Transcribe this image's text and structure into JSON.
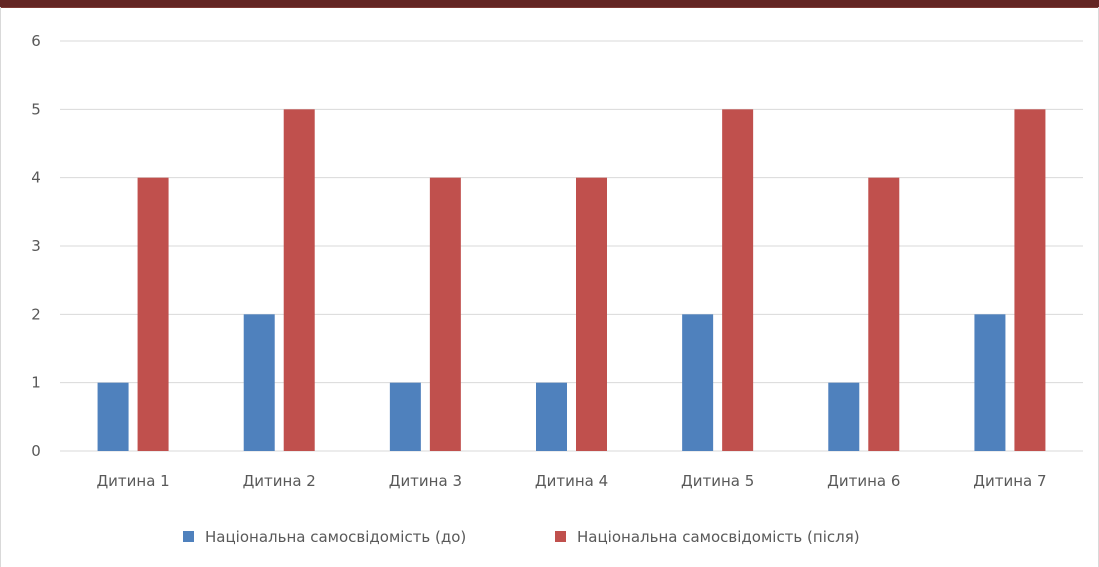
{
  "chart_data": {
    "type": "bar",
    "title": "",
    "xlabel": "",
    "ylabel": "",
    "ylim": [
      0,
      6
    ],
    "yticks": [
      "0",
      "1",
      "2",
      "3",
      "4",
      "5",
      "6"
    ],
    "grid": true,
    "legend_position": "bottom",
    "categories": [
      "Дитина 1",
      "Дитина 2",
      "Дитина 3",
      "Дитина 4",
      "Дитина 5",
      "Дитина 6",
      "Дитина 7"
    ],
    "series": [
      {
        "name": "Національна самосвідомість (до)",
        "color": "#4f81bd",
        "values": [
          1,
          2,
          1,
          1,
          2,
          1,
          2
        ]
      },
      {
        "name": "Національна самосвідомість (після)",
        "color": "#c0504d",
        "values": [
          4,
          5,
          4,
          4,
          5,
          4,
          5
        ]
      }
    ]
  },
  "colors": {
    "top_bar": "#632523",
    "gridline": "#d9d9d9",
    "axis_text": "#595959"
  }
}
